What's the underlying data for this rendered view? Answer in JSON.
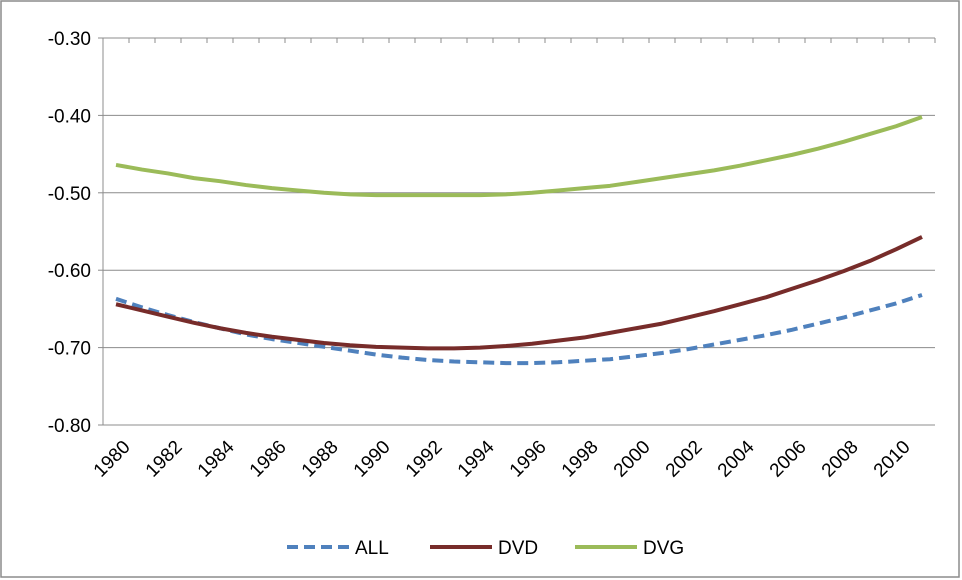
{
  "chart_data": {
    "type": "line",
    "categories": [
      "1980",
      null,
      "1982",
      null,
      "1984",
      null,
      "1986",
      null,
      "1988",
      null,
      "1990",
      null,
      "1992",
      null,
      "1994",
      null,
      "1996",
      null,
      "1998",
      null,
      "2000",
      null,
      "2002",
      null,
      "2004",
      null,
      "2006",
      null,
      "2008",
      null,
      "2010",
      null
    ],
    "series": [
      {
        "name": "ALL",
        "color": "#4f81bd",
        "dashed": true,
        "values": [
          -0.637,
          -0.648,
          -0.658,
          -0.667,
          -0.675,
          -0.683,
          -0.689,
          -0.694,
          -0.699,
          -0.704,
          -0.709,
          -0.713,
          -0.716,
          -0.718,
          -0.719,
          -0.72,
          -0.72,
          -0.719,
          -0.717,
          -0.715,
          -0.711,
          -0.707,
          -0.702,
          -0.696,
          -0.69,
          -0.684,
          -0.677,
          -0.669,
          -0.661,
          -0.652,
          -0.643,
          -0.632
        ]
      },
      {
        "name": "DVD",
        "color": "#772c2a",
        "dashed": false,
        "values": [
          -0.644,
          -0.652,
          -0.66,
          -0.668,
          -0.675,
          -0.681,
          -0.686,
          -0.69,
          -0.694,
          -0.697,
          -0.699,
          -0.7,
          -0.701,
          -0.701,
          -0.7,
          -0.698,
          -0.695,
          -0.691,
          -0.687,
          -0.681,
          -0.675,
          -0.669,
          -0.661,
          -0.653,
          -0.644,
          -0.635,
          -0.624,
          -0.613,
          -0.601,
          -0.588,
          -0.573,
          -0.557
        ]
      },
      {
        "name": "DVG",
        "color": "#9bbb59",
        "dashed": false,
        "values": [
          -0.464,
          -0.47,
          -0.475,
          -0.481,
          -0.485,
          -0.49,
          -0.494,
          -0.497,
          -0.5,
          -0.502,
          -0.503,
          -0.503,
          -0.503,
          -0.503,
          -0.503,
          -0.502,
          -0.5,
          -0.497,
          -0.494,
          -0.491,
          -0.486,
          -0.481,
          -0.476,
          -0.471,
          -0.465,
          -0.458,
          -0.451,
          -0.443,
          -0.434,
          -0.424,
          -0.414,
          -0.402
        ]
      }
    ],
    "ylim": [
      -0.8,
      -0.3
    ],
    "yticks": [
      {
        "value": -0.8,
        "label": "-0.80"
      },
      {
        "value": -0.7,
        "label": "-0.70"
      },
      {
        "value": -0.6,
        "label": "-0.60"
      },
      {
        "value": -0.5,
        "label": "-0.50"
      },
      {
        "value": -0.4,
        "label": "-0.40"
      },
      {
        "value": -0.3,
        "label": "-0.30"
      }
    ],
    "grid": true,
    "legend": "bottom"
  }
}
